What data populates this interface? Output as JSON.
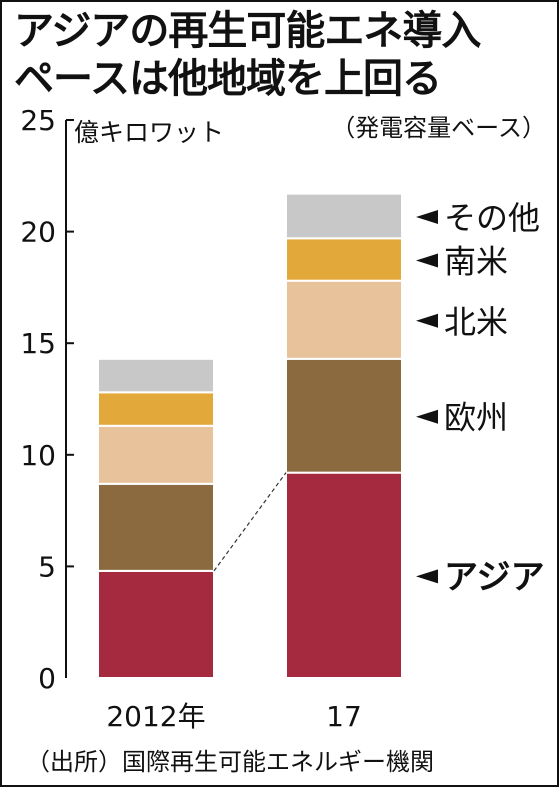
{
  "title_line1": "アジアの再生可能エネ導入",
  "title_line2": "ペースは他地域を上回る",
  "unit_label": "億キロワット",
  "basis_label": "（発電容量ベース）",
  "source": "（出所）国際再生可能エネルギー機関",
  "colors": {
    "アジア": "#a52a3f",
    "欧州": "#8a6a3e",
    "北米": "#e7c29a",
    "南米": "#e3a83a",
    "その他": "#c8c8c8"
  },
  "chart_data": {
    "type": "bar",
    "stacked": true,
    "categories": [
      "2012年",
      "17"
    ],
    "ylim": [
      0,
      25
    ],
    "yticks": [
      0,
      5,
      10,
      15,
      20,
      25
    ],
    "grid": false,
    "series": [
      {
        "name": "アジア",
        "values": [
          4.8,
          9.2
        ]
      },
      {
        "name": "欧州",
        "values": [
          3.9,
          5.1
        ]
      },
      {
        "name": "北米",
        "values": [
          2.6,
          3.5
        ]
      },
      {
        "name": "南米",
        "values": [
          1.5,
          1.9
        ]
      },
      {
        "name": "その他",
        "values": [
          1.5,
          2.0
        ]
      }
    ]
  }
}
